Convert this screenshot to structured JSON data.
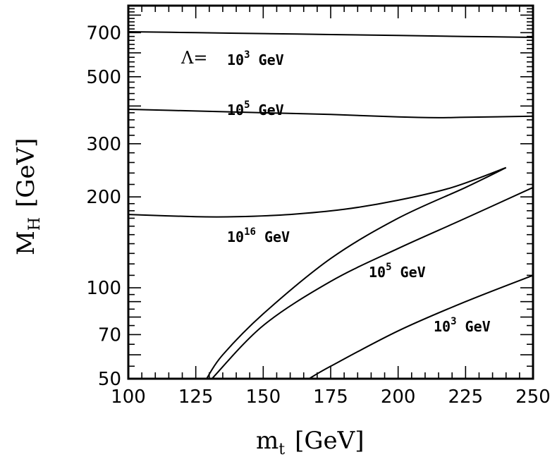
{
  "chart_data": {
    "type": "line",
    "title": "",
    "xlabel": "m",
    "xlabel_sub": "t",
    "xlabel_unit": "[GeV]",
    "ylabel": "M",
    "ylabel_sub": "H",
    "ylabel_unit": "[GeV]",
    "xlim": [
      100,
      250
    ],
    "ylim": [
      50,
      860
    ],
    "yscale": "log",
    "xticks": [
      100,
      125,
      150,
      175,
      200,
      225,
      250
    ],
    "yticks": [
      50,
      70,
      100,
      200,
      300,
      500,
      700
    ],
    "grid": false,
    "annotations": {
      "lambda_label": "Λ=",
      "a1_base": "10",
      "a1_exp": "3",
      "a1_unit": "GeV",
      "a2_base": "10",
      "a2_exp": "5",
      "a2_unit": "GeV",
      "a3_base": "10",
      "a3_exp": "16",
      "a3_unit": "GeV",
      "a4_base": "10",
      "a4_exp": "5",
      "a4_unit": "GeV",
      "a5_base": "10",
      "a5_exp": "3",
      "a5_unit": "GeV"
    },
    "series": [
      {
        "x": [
          100,
          125,
          150,
          175,
          200,
          225,
          250
        ],
        "y": [
          705,
          700,
          695,
          690,
          685,
          680,
          675
        ]
      },
      {
        "x": [
          100,
          125,
          150,
          175,
          200,
          215,
          225,
          250
        ],
        "y": [
          390,
          385,
          380,
          375,
          368,
          366,
          367,
          370
        ]
      },
      {
        "x": [
          100,
          125,
          140,
          160,
          180,
          200,
          220,
          240
        ],
        "y": [
          175,
          172,
          172,
          175,
          182,
          195,
          215,
          250
        ]
      },
      {
        "x": [
          129,
          135,
          150,
          175,
          200,
          225,
          240
        ],
        "y": [
          50,
          60,
          82,
          125,
          170,
          215,
          250
        ]
      },
      {
        "x": [
          131,
          150,
          175,
          200,
          225,
          250
        ],
        "y": [
          50,
          75,
          105,
          135,
          170,
          215
        ]
      },
      {
        "x": [
          167,
          175,
          200,
          225,
          250
        ],
        "y": [
          50,
          55,
          72,
          90,
          110
        ]
      }
    ]
  }
}
